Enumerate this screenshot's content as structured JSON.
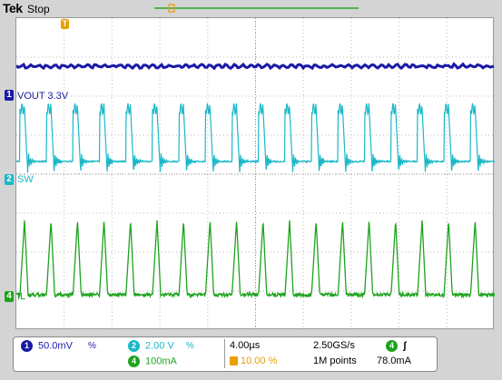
{
  "header": {
    "brand": "Tek",
    "status": "Stop"
  },
  "channels": [
    {
      "num": "1",
      "label": "VOUT 3.3V",
      "color": "#1a1aa6"
    },
    {
      "num": "2",
      "label": "SW",
      "color": "#1ab8c8"
    },
    {
      "num": "4",
      "label": "IL",
      "color": "#1ea31e"
    }
  ],
  "trigger_marker": {
    "label": "T",
    "color": "#e8a000"
  },
  "footer": {
    "ch1": {
      "num": "1",
      "scale": "50.0mV",
      "suffix": "%"
    },
    "ch2": {
      "num": "2",
      "scale": "2.00 V",
      "suffix": "%"
    },
    "ch4": {
      "num": "4",
      "scale": "100mA"
    },
    "timebase": "4.00µs",
    "trig_pos": "10.00 %",
    "sample_rate": "2.50GS/s",
    "record": "1M points",
    "trig_ch": "4",
    "trig_slope": "ʃ",
    "trig_level": "78.0mA"
  }
}
